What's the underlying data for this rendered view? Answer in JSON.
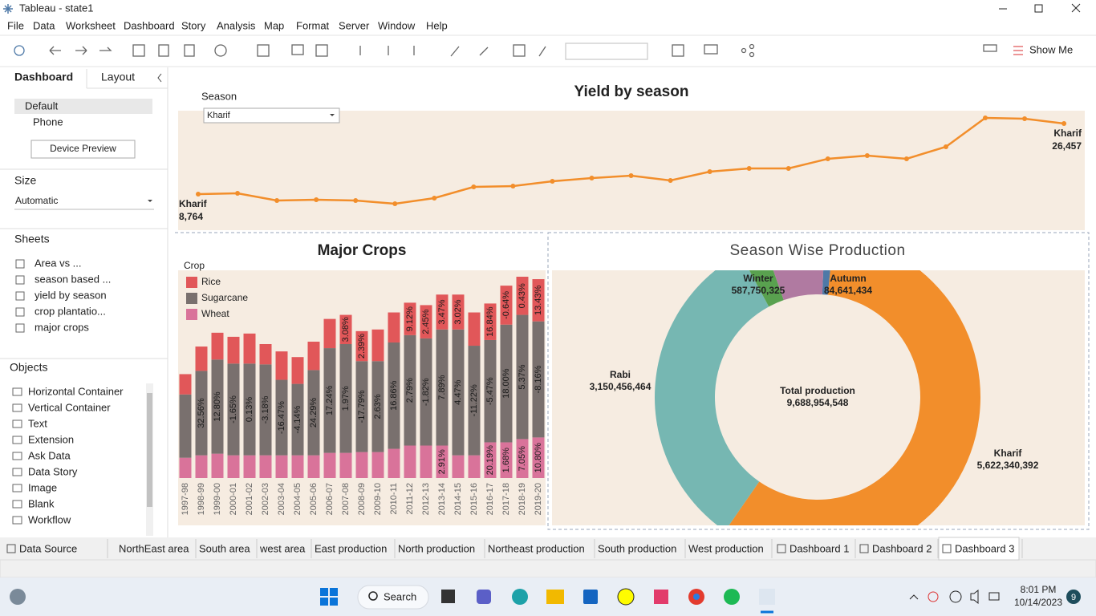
{
  "window": {
    "title": "Tableau - state1"
  },
  "menu": [
    "File",
    "Data",
    "Worksheet",
    "Dashboard",
    "Story",
    "Analysis",
    "Map",
    "Format",
    "Server",
    "Window",
    "Help"
  ],
  "toolbar": {
    "show_me": "Show Me"
  },
  "sidebar": {
    "tabs": [
      "Dashboard",
      "Layout"
    ],
    "devices": [
      "Default",
      "Phone"
    ],
    "device_preview": "Device Preview",
    "size_heading": "Size",
    "size_value": "Automatic",
    "sheets_heading": "Sheets",
    "sheets": [
      "Area vs ...",
      "season based ...",
      "yield by season",
      "crop plantatio...",
      "major crops"
    ],
    "objects_heading": "Objects",
    "objects": [
      "Horizontal Container",
      "Vertical Container",
      "Text",
      "Extension",
      "Ask Data",
      "Data Story",
      "Image",
      "Blank",
      "Workflow"
    ]
  },
  "chart_data": [
    {
      "type": "line",
      "title": "Yield by season",
      "filter_label": "Season",
      "filter_value": "Kharif",
      "series_name": "Kharif",
      "color": "#f28e2b",
      "values": [
        8764,
        8965,
        7156,
        7357,
        7156,
        6352,
        7759,
        10573,
        10774,
        11980,
        12784,
        13387,
        12181,
        14392,
        15196,
        15196,
        17608,
        18412,
        17608,
        20623,
        27859,
        27658,
        26457
      ],
      "value_labels": [
        "8,764",
        null,
        null,
        null,
        null,
        null,
        null,
        null,
        null,
        null,
        null,
        null,
        null,
        null,
        null,
        null,
        null,
        null,
        null,
        null,
        null,
        null,
        "26,457"
      ]
    },
    {
      "type": "stacked_bar",
      "title": "Major Crops",
      "legend_title": "Crop",
      "categories": [
        "1997-98",
        "1998-99",
        "1999-00",
        "2000-01",
        "2001-02",
        "2002-03",
        "2003-04",
        "2004-05",
        "2005-06",
        "2006-07",
        "2007-08",
        "2008-09",
        "2009-10",
        "2010-11",
        "2011-12",
        "2012-13",
        "2013-14",
        "2014-15",
        "2015-16",
        "2016-17",
        "2017-18",
        "2018-19",
        "2019-20"
      ],
      "series": [
        {
          "name": "Wheat",
          "color": "#d9739a",
          "values": [
            25,
            28,
            30,
            28,
            28,
            28,
            28,
            28,
            28,
            31,
            31,
            32,
            32,
            36,
            40,
            40,
            40,
            28,
            28,
            44,
            44,
            48,
            50
          ],
          "change_labels": [
            null,
            null,
            null,
            null,
            null,
            null,
            null,
            null,
            null,
            null,
            null,
            null,
            null,
            null,
            null,
            null,
            "2.91%",
            null,
            null,
            "20.19%",
            "1.68%",
            "7.05%",
            "10.80%"
          ]
        },
        {
          "name": "Sugarcane",
          "color": "#79706e",
          "values": [
            78,
            104,
            116,
            113,
            113,
            112,
            93,
            88,
            105,
            129,
            134,
            112,
            112,
            131,
            136,
            132,
            143,
            155,
            135,
            126,
            145,
            153,
            143
          ],
          "change_labels": [
            null,
            "32.56%",
            "12.80%",
            "-1.65%",
            "0.13%",
            "-3.18%",
            "-16.47%",
            "-4.14%",
            "24.29%",
            "17.24%",
            "1.97%",
            "-17.79%",
            "2.63%",
            "16.86%",
            "2.79%",
            "-1.82%",
            "7.89%",
            "4.47%",
            "-11.22%",
            "-5.47%",
            "18.00%",
            "5.37%",
            "-8.16%"
          ]
        },
        {
          "name": "Rice",
          "color": "#e15759",
          "values": [
            25,
            30,
            33,
            33,
            37,
            25,
            35,
            33,
            35,
            36,
            36,
            37,
            39,
            37,
            40,
            41,
            43,
            43,
            41,
            45,
            48,
            47,
            52
          ],
          "change_labels": [
            null,
            null,
            null,
            null,
            null,
            null,
            null,
            null,
            null,
            null,
            "3.08%",
            "2.39%",
            null,
            null,
            "9.12%",
            "2.45%",
            "3.47%",
            "3.02%",
            null,
            "16.84%",
            "-0.64%",
            "0.43%",
            "13.43%"
          ]
        }
      ]
    },
    {
      "type": "donut",
      "title": "Season Wise Production",
      "categories": [
        "Autumn",
        "Kharif",
        "Rabi",
        null,
        "Winter"
      ],
      "values": [
        84641434,
        5622340392,
        3150456464,
        243765933,
        587750325
      ],
      "value_labels": [
        "84,641,434",
        "5,622,340,392",
        "3,150,456,464",
        null,
        "587,750,325"
      ],
      "colors": [
        "#4e79a7",
        "#f28e2b",
        "#76b7b2",
        "#59a14f",
        "#b07aa1"
      ],
      "center_title": "Total production",
      "center_text": "9,688,954,548"
    }
  ],
  "tabs": [
    "Data Source",
    "NorthEast area",
    "South area",
    "west area",
    "East production",
    "North production",
    "Northeast production",
    "South production",
    "West production",
    "Dashboard 1",
    "Dashboard 2",
    "Dashboard 3"
  ],
  "taskbar": {
    "search": "Search",
    "time": "8:01 PM",
    "date": "10/14/2023",
    "badge": "9"
  }
}
